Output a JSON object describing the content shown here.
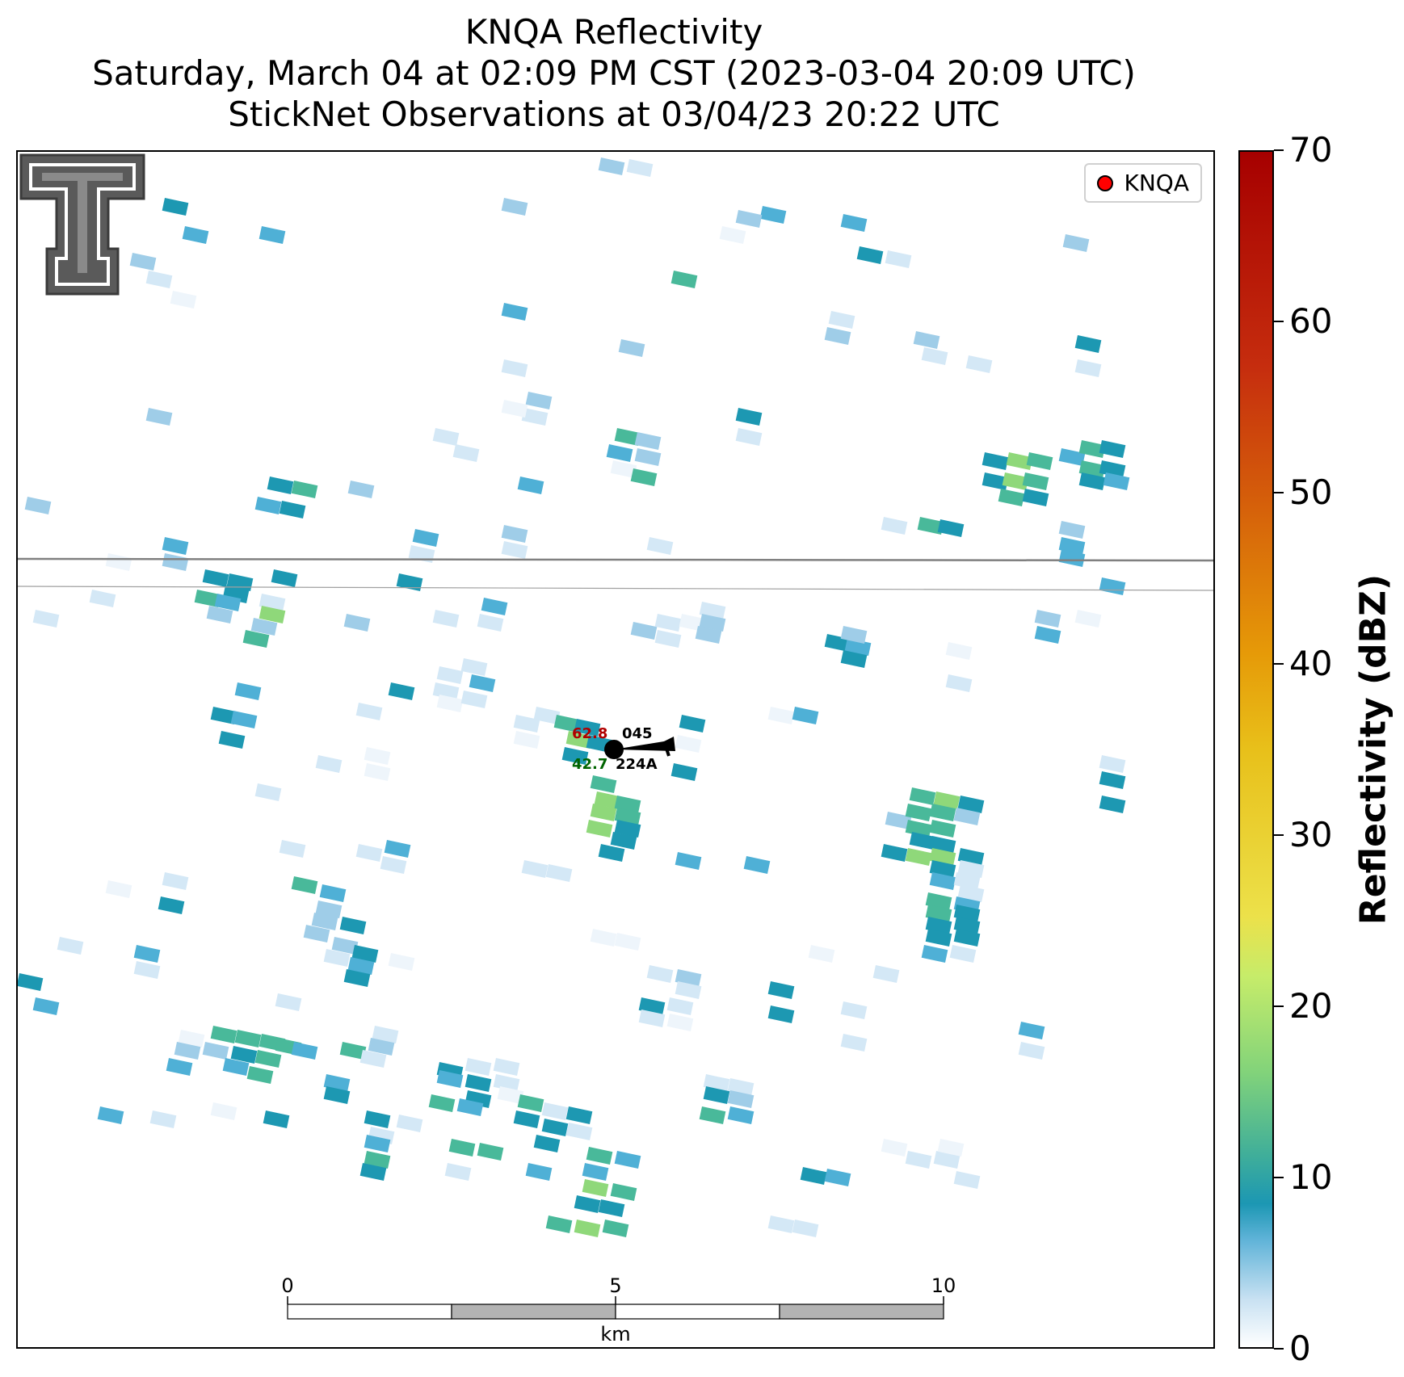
{
  "title": {
    "line1": "KNQA Reflectivity",
    "line2": "Saturday, March 04 at 02:09 PM CST (2023-03-04 20:09 UTC)",
    "line3": "StickNet Observations at 03/04/23 20:22 UTC"
  },
  "legend": {
    "label": "KNQA",
    "marker_color": "#ff0000"
  },
  "colorbar": {
    "label": "Reflectivity (dBZ)",
    "ticks": [
      "0",
      "10",
      "20",
      "30",
      "40",
      "50",
      "60",
      "70"
    ],
    "min": 0,
    "max": 70
  },
  "scalebar": {
    "labels": [
      "0",
      "5",
      "10"
    ],
    "unit": "km"
  },
  "station": {
    "temperature": "62.8",
    "dewpoint": "42.7",
    "pressure_code": "045",
    "station_id": "224A",
    "temperature_color": "#b00000",
    "dewpoint_color": "#006400"
  },
  "logo": {
    "name": "texas-tech-double-t-logo"
  }
}
